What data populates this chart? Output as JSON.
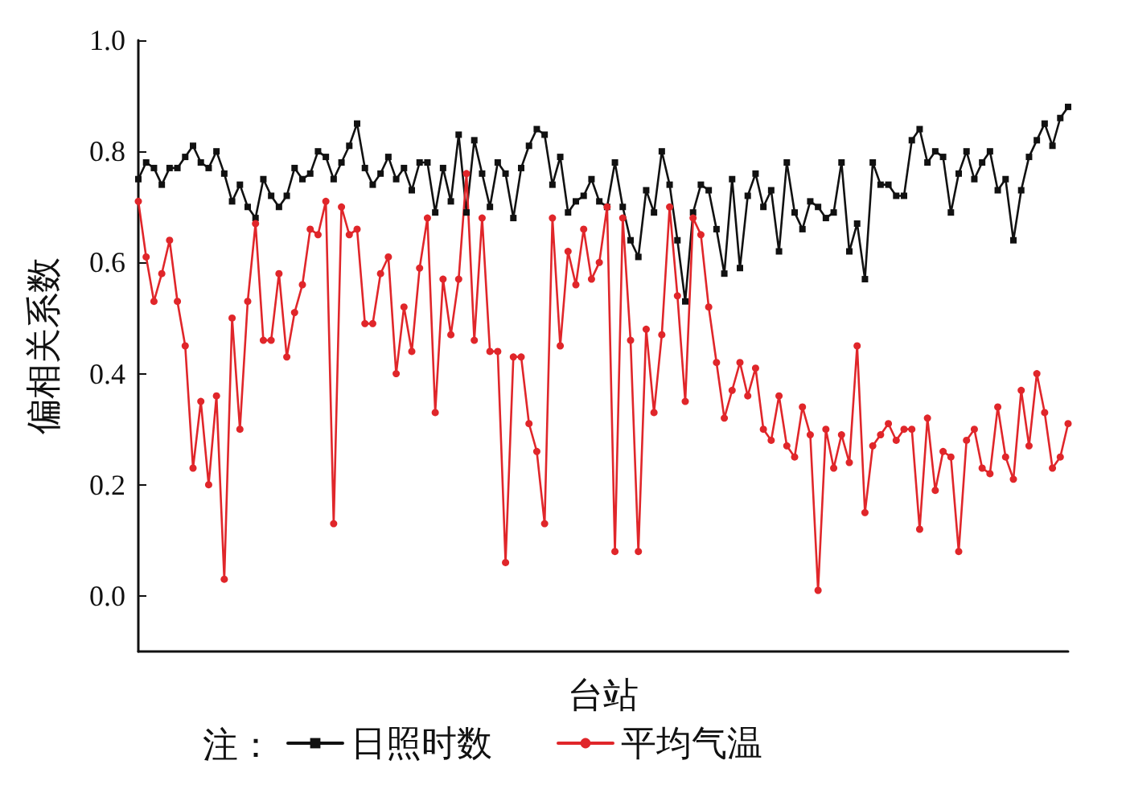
{
  "chart_data": {
    "type": "line",
    "xlabel": "台站",
    "ylabel": "偏相关系数",
    "legend_title": "注：",
    "categories": [
      null,
      null,
      null,
      null,
      null,
      null,
      null,
      null,
      null,
      null,
      null,
      null,
      null,
      null,
      null,
      null,
      null,
      null,
      null,
      null,
      null,
      null,
      null,
      null,
      null,
      null,
      null,
      null,
      null,
      null,
      null,
      null,
      null,
      null,
      null,
      null,
      null,
      null,
      null,
      null,
      null,
      null,
      null,
      null,
      null,
      null,
      null,
      null,
      null,
      null,
      null,
      null,
      null,
      null,
      null,
      null,
      null,
      null,
      null,
      null,
      null,
      null,
      null,
      null,
      null,
      null,
      null,
      null,
      null,
      null,
      null,
      null,
      null,
      null,
      null,
      null,
      null,
      null,
      null,
      null,
      null,
      null,
      null,
      null,
      null,
      null,
      null,
      null,
      null,
      null,
      null,
      null,
      null,
      null,
      null,
      null,
      null,
      null,
      null,
      null,
      null,
      null,
      null,
      null,
      null,
      null,
      null,
      null,
      null,
      null,
      null,
      null,
      null,
      null,
      null,
      null,
      null,
      null,
      null,
      null
    ],
    "series": [
      {
        "name": "日照时数",
        "color": "#111111",
        "marker": "square",
        "values": [
          0.75,
          0.78,
          0.77,
          0.74,
          0.77,
          0.77,
          0.79,
          0.81,
          0.78,
          0.77,
          0.8,
          0.76,
          0.71,
          0.74,
          0.7,
          0.68,
          0.75,
          0.72,
          0.7,
          0.72,
          0.77,
          0.75,
          0.76,
          0.8,
          0.79,
          0.75,
          0.78,
          0.81,
          0.85,
          0.77,
          0.74,
          0.76,
          0.79,
          0.75,
          0.77,
          0.73,
          0.78,
          0.78,
          0.69,
          0.77,
          0.71,
          0.83,
          0.69,
          0.82,
          0.76,
          0.7,
          0.78,
          0.76,
          0.68,
          0.77,
          0.81,
          0.84,
          0.83,
          0.74,
          0.79,
          0.69,
          0.71,
          0.72,
          0.75,
          0.71,
          0.7,
          0.78,
          0.7,
          0.64,
          0.61,
          0.73,
          0.69,
          0.8,
          0.74,
          0.64,
          0.53,
          0.69,
          0.74,
          0.73,
          0.66,
          0.58,
          0.75,
          0.59,
          0.72,
          0.76,
          0.7,
          0.73,
          0.62,
          0.78,
          0.69,
          0.66,
          0.71,
          0.7,
          0.68,
          0.69,
          0.78,
          0.62,
          0.67,
          0.57,
          0.78,
          0.74,
          0.74,
          0.72,
          0.72,
          0.82,
          0.84,
          0.78,
          0.8,
          0.79,
          0.69,
          0.76,
          0.8,
          0.75,
          0.78,
          0.8,
          0.73,
          0.75,
          0.64,
          0.73,
          0.79,
          0.82,
          0.85,
          0.81,
          0.86,
          0.88
        ]
      },
      {
        "name": "平均气温",
        "color": "#e0262a",
        "marker": "circle",
        "values": [
          0.71,
          0.61,
          0.53,
          0.58,
          0.64,
          0.53,
          0.45,
          0.23,
          0.35,
          0.2,
          0.36,
          0.03,
          0.5,
          0.3,
          0.53,
          0.67,
          0.46,
          0.46,
          0.58,
          0.43,
          0.51,
          0.56,
          0.66,
          0.65,
          0.71,
          0.13,
          0.7,
          0.65,
          0.66,
          0.49,
          0.49,
          0.58,
          0.61,
          0.4,
          0.52,
          0.44,
          0.59,
          0.68,
          0.33,
          0.57,
          0.47,
          0.57,
          0.76,
          0.46,
          0.68,
          0.44,
          0.44,
          0.06,
          0.43,
          0.43,
          0.31,
          0.26,
          0.13,
          0.68,
          0.45,
          0.62,
          0.56,
          0.66,
          0.57,
          0.6,
          0.7,
          0.08,
          0.68,
          0.46,
          0.08,
          0.48,
          0.33,
          0.47,
          0.7,
          0.54,
          0.35,
          0.68,
          0.65,
          0.52,
          0.42,
          0.32,
          0.37,
          0.42,
          0.36,
          0.41,
          0.3,
          0.28,
          0.36,
          0.27,
          0.25,
          0.34,
          0.29,
          0.01,
          0.3,
          0.23,
          0.29,
          0.24,
          0.45,
          0.15,
          0.27,
          0.29,
          0.31,
          0.28,
          0.3,
          0.3,
          0.12,
          0.32,
          0.19,
          0.26,
          0.25,
          0.08,
          0.28,
          0.3,
          0.23,
          0.22,
          0.34,
          0.25,
          0.21,
          0.37,
          0.27,
          0.4,
          0.33,
          0.23,
          0.25,
          0.31
        ]
      }
    ],
    "ylim": [
      -0.1,
      1.0
    ],
    "yticks": [
      {
        "value": 0,
        "label": "0.0"
      },
      {
        "value": 0.2,
        "label": "0.2"
      },
      {
        "value": 0.4,
        "label": "0.4"
      },
      {
        "value": 0.6,
        "label": "0.6"
      },
      {
        "value": 0.8,
        "label": "0.8"
      },
      {
        "value": 1,
        "label": "1.0"
      }
    ],
    "tick_labels": "y",
    "grid": false,
    "legend": "bottom",
    "line_style": "solid"
  }
}
